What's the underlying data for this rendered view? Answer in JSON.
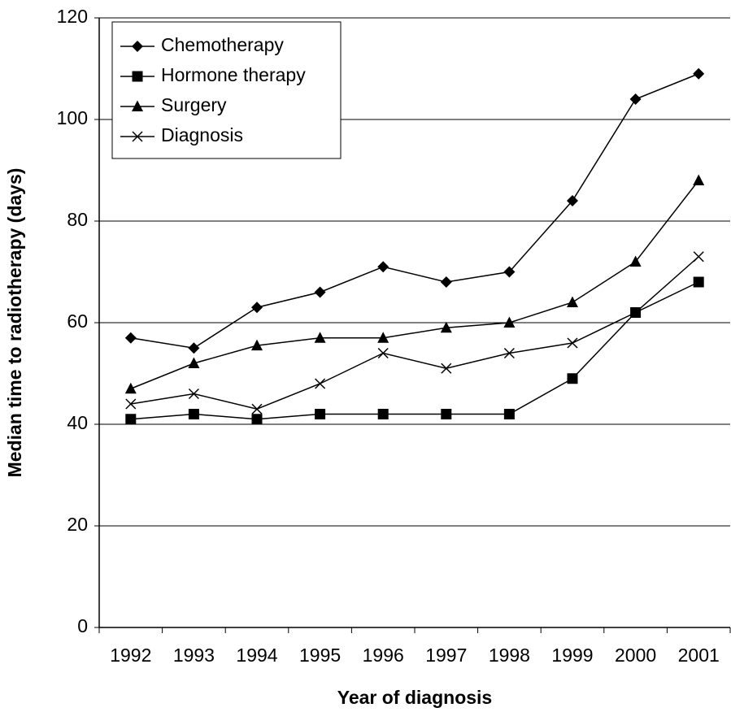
{
  "chart_data": {
    "type": "line",
    "x_label": "Year of diagnosis",
    "y_label": "Median time to radiotherapy (days)",
    "categories": [
      "1992",
      "1993",
      "1994",
      "1995",
      "1996",
      "1997",
      "1998",
      "1999",
      "2000",
      "2001"
    ],
    "series": [
      {
        "name": "Chemotherapy",
        "color": "#000000",
        "marker": "diamond",
        "values": [
          57,
          55,
          63,
          66,
          71,
          68,
          70,
          84,
          104,
          109
        ]
      },
      {
        "name": "Hormone therapy",
        "color": "#000000",
        "marker": "square",
        "values": [
          41,
          42,
          41,
          42,
          42,
          42,
          42,
          49,
          62,
          68
        ]
      },
      {
        "name": "Surgery",
        "color": "#000000",
        "marker": "triangle",
        "values": [
          47,
          52,
          55.5,
          57,
          57,
          59,
          60,
          64,
          72,
          88
        ]
      },
      {
        "name": "Diagnosis",
        "color": "#000000",
        "marker": "x",
        "values": [
          44,
          46,
          43,
          48,
          54,
          51,
          54,
          56,
          62,
          73
        ]
      }
    ],
    "ylim": [
      0,
      120
    ],
    "yticks": [
      0,
      20,
      40,
      60,
      80,
      100,
      120
    ],
    "grid": true,
    "legend": "top-left"
  }
}
